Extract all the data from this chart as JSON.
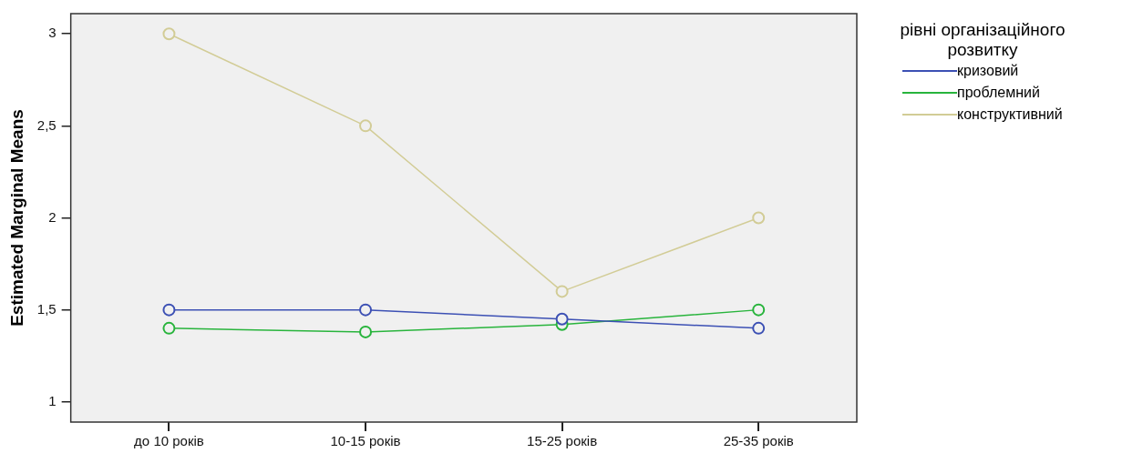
{
  "chart_data": {
    "type": "line",
    "ylabel": "Estimated Marginal Means",
    "legend_title": "рівні організаційного розвитку",
    "legend": "right",
    "marker": "circle",
    "categories": [
      "до 10 років",
      "10-15 років",
      "15-25 років",
      "25-35 років"
    ],
    "ylim": [
      0.89,
      3.11
    ],
    "yticks": [
      1,
      {
        "value": 1.5,
        "label": "1,5"
      },
      2,
      {
        "value": 2.5,
        "label": "2,5"
      },
      3
    ],
    "series": [
      {
        "name": "кризовий",
        "color": "#3c50b4",
        "values": [
          1.5,
          1.5,
          1.45,
          1.4
        ]
      },
      {
        "name": "проблемний",
        "color": "#28b43c",
        "values": [
          1.4,
          1.38,
          1.42,
          1.5
        ]
      },
      {
        "name": "конструктивний",
        "color": "#d2cc96",
        "values": [
          3,
          2.5,
          1.6,
          2
        ]
      }
    ]
  }
}
